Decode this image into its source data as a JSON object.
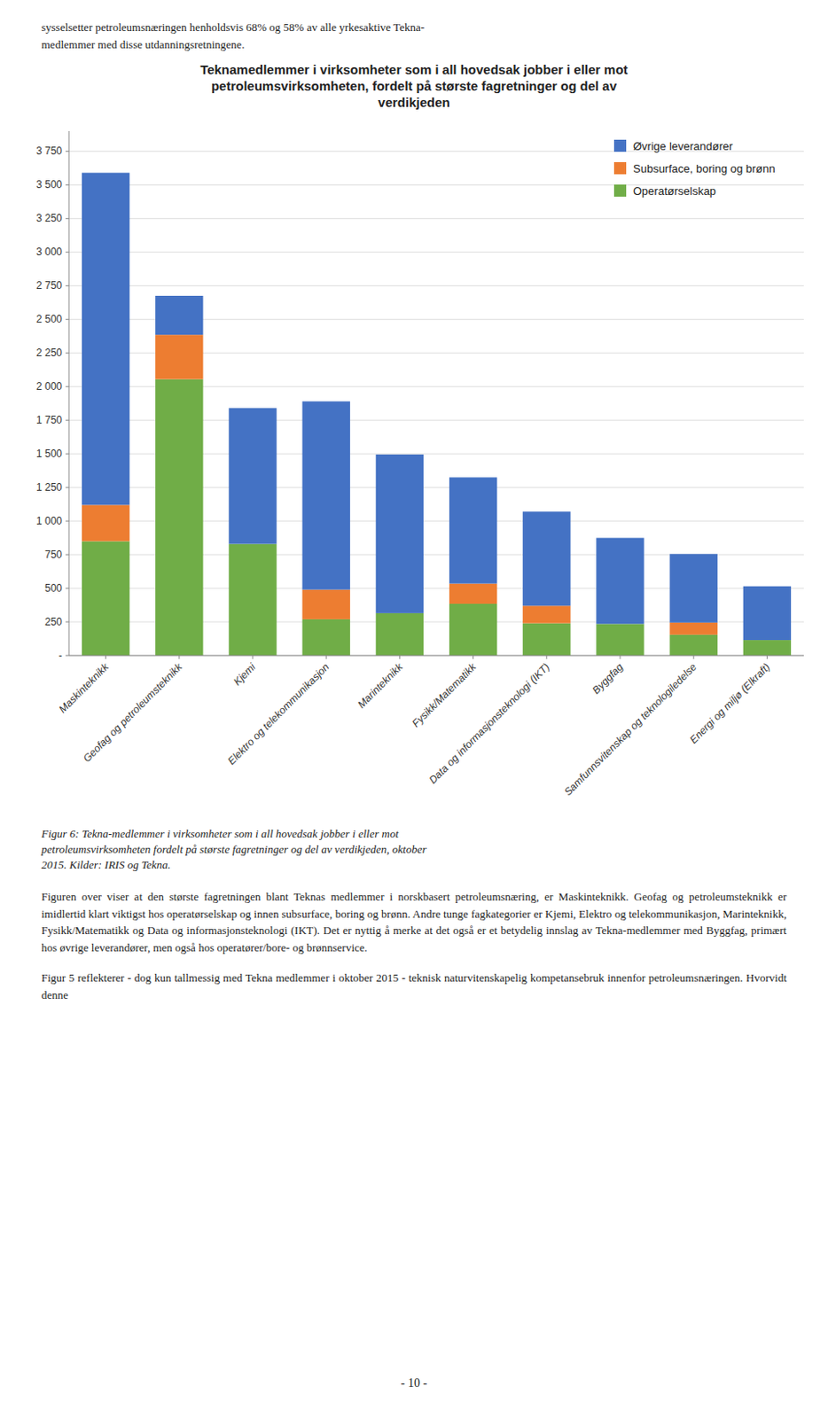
{
  "chart_data": {
    "type": "bar",
    "stacked": true,
    "title": "Teknamedlemmer i virksomheter som i all hovedsak jobber i eller mot\npetroleumsvirksomheten, fordelt på største fagretninger og del av\nverdikjeden",
    "categories": [
      "Maskinteknikk",
      "Geofag og petroleumsteknikk",
      "Kjemi",
      "Elektro og telekommunikasjon",
      "Marinteknikk",
      "Fysikk/Matematikk",
      "Data og informasjonsteknologi (IKT)",
      "Byggfag",
      "Samfunnsvitenskap og teknologiledelse",
      "Energi og miljø (Elkraft)"
    ],
    "series": [
      {
        "name": "Operatørselskap",
        "color": "#70AD47",
        "values": [
          850,
          2055,
          830,
          270,
          315,
          385,
          240,
          235,
          155,
          115
        ]
      },
      {
        "name": "Subsurface, boring og brønn",
        "color": "#ED7D31",
        "values": [
          270,
          330,
          0,
          220,
          0,
          150,
          130,
          0,
          90,
          0
        ]
      },
      {
        "name": "Øvrige leverandører",
        "color": "#4472C4",
        "values": [
          2470,
          290,
          1010,
          1400,
          1180,
          790,
          700,
          640,
          510,
          400
        ]
      }
    ],
    "ylim": [
      0,
      3900
    ],
    "yticks": [
      {
        "value": 0,
        "label": "-"
      },
      250,
      500,
      750,
      {
        "value": 1000,
        "label": "1 000"
      },
      {
        "value": 1250,
        "label": "1 250"
      },
      {
        "value": 1500,
        "label": "1 500"
      },
      {
        "value": 1750,
        "label": "1 750"
      },
      {
        "value": 2000,
        "label": "2 000"
      },
      {
        "value": 2250,
        "label": "2 250"
      },
      {
        "value": 2500,
        "label": "2 500"
      },
      {
        "value": 2750,
        "label": "2 750"
      },
      {
        "value": 3000,
        "label": "3 000"
      },
      {
        "value": 3250,
        "label": "3 250"
      },
      {
        "value": 3500,
        "label": "3 500"
      },
      {
        "value": 3750,
        "label": "3 750"
      }
    ],
    "grid": true,
    "legend": "upper right"
  },
  "text_above": "sysselsetter petroleumsnæringen henholdsvis 68% og 58% av alle yrkesaktive Tekna-\nmedlemmer med disse utdanningsretningene.",
  "caption": "Figur 6: Tekna-medlemmer i virksomheter som i all hovedsak jobber i eller mot\npetroleumsvirksomheten fordelt på største fagretninger og del av verdikjeden, oktober\n2015. Kilder: IRIS og Tekna.",
  "body": [
    "Figuren over viser at den største fagretningen blant Teknas medlemmer i norskbasert petroleumsnæring, er Maskinteknikk. Geofag og petroleumsteknikk er imidlertid klart viktigst hos operatørselskap og innen subsurface, boring og brønn. Andre tunge fagkategorier er Kjemi, Elektro og telekommunikasjon, Marinteknikk, Fysikk/Matematikk og Data og informasjonsteknologi (IKT). Det er nyttig å merke at det også er et betydelig innslag av Tekna-medlemmer med Byggfag, primært hos øvrige leverandører, men også hos operatører/bore- og brønnservice.",
    "Figur 5 reflekterer - dog kun tallmessig med Tekna medlemmer i oktober 2015 - teknisk naturvitenskapelig kompetansebruk innenfor petroleumsnæringen. Hvorvidt denne"
  ],
  "page_number": "- 10 -"
}
